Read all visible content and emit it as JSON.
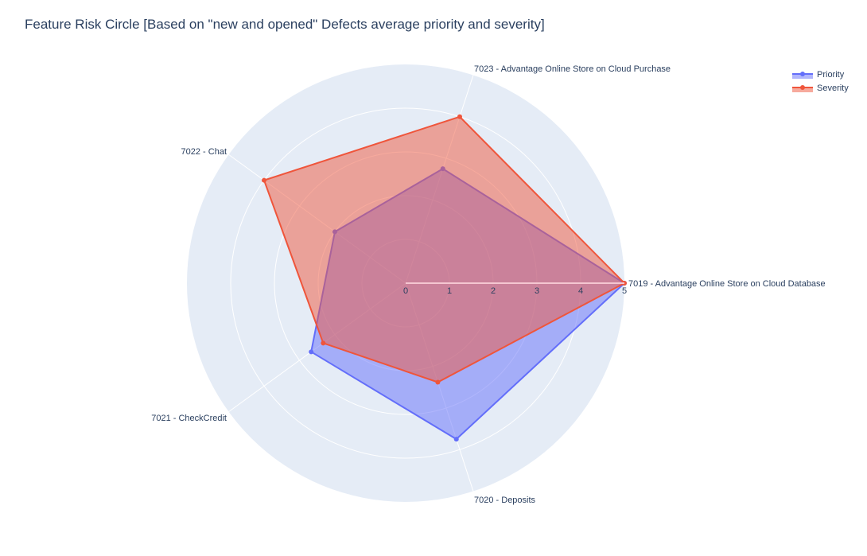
{
  "chart_data": {
    "type": "radar",
    "title": "Feature Risk Circle [Based on \"new and opened\" Defects average priority and severity]",
    "categories": [
      "7019 - Advantage Online  Store  on Cloud Database",
      "7023 - Advantage Online  Store  on Cloud Purchase",
      "7022 - Chat",
      "7021 - CheckCredit",
      "7020 - Deposits"
    ],
    "radial_range": [
      0,
      5
    ],
    "radial_ticks": [
      "0",
      "1",
      "2",
      "3",
      "4",
      "5"
    ],
    "grid": true,
    "legend_position": "top-right",
    "series": [
      {
        "name": "Priority",
        "color": "#636efa",
        "values": [
          5,
          2.75,
          2,
          2.67,
          3.75
        ]
      },
      {
        "name": "Severity",
        "color": "#EF553B",
        "values": [
          5,
          4,
          4,
          2.33,
          2.38
        ]
      }
    ]
  }
}
